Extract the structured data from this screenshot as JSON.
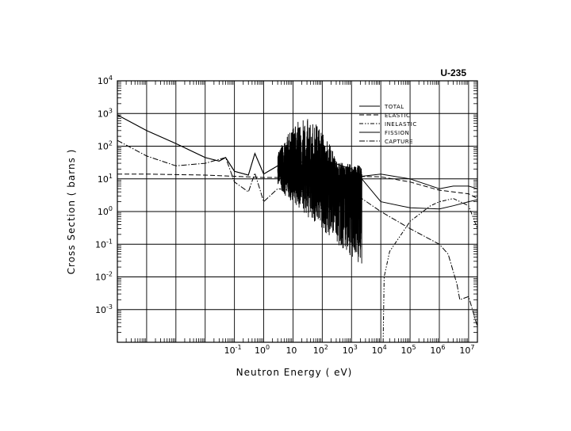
{
  "chart_data": {
    "type": "line",
    "title": "U-235",
    "xlabel": "Neutron Energy ( eV)",
    "ylabel": "Cross Section ( barns )",
    "x_scale": "log",
    "y_scale": "log",
    "xlim": [
      1e-05,
      20000000
    ],
    "ylim": [
      0.0001,
      10000
    ],
    "grid": true,
    "legend_position": "top-right",
    "x_ticks": [
      {
        "value": 0.1,
        "base": "10",
        "exp": "-1"
      },
      {
        "value": 1,
        "base": "10",
        "exp": "0"
      },
      {
        "value": 10,
        "base": "10",
        "exp": ""
      },
      {
        "value": 100,
        "base": "10",
        "exp": "2"
      },
      {
        "value": 1000,
        "base": "10",
        "exp": "3"
      },
      {
        "value": 10000,
        "base": "10",
        "exp": "4"
      },
      {
        "value": 100000,
        "base": "10",
        "exp": "5"
      },
      {
        "value": 1000000,
        "base": "10",
        "exp": "6"
      },
      {
        "value": 10000000,
        "base": "10",
        "exp": "7"
      }
    ],
    "y_ticks": [
      {
        "value": 0.001,
        "base": "10",
        "exp": "-3"
      },
      {
        "value": 0.01,
        "base": "10",
        "exp": "-2"
      },
      {
        "value": 0.1,
        "base": "10",
        "exp": "-1"
      },
      {
        "value": 1,
        "base": "10",
        "exp": "0"
      },
      {
        "value": 10,
        "base": "10",
        "exp": "1"
      },
      {
        "value": 100,
        "base": "10",
        "exp": "2"
      },
      {
        "value": 1000,
        "base": "10",
        "exp": "3"
      },
      {
        "value": 10000,
        "base": "10",
        "exp": "4"
      }
    ],
    "resonance_region": {
      "x_start": 3,
      "x_end": 2250,
      "y_min": 0.008,
      "y_max": 1500
    },
    "series": [
      {
        "name": "TOTAL",
        "dash": "solid",
        "points": [
          [
            1e-05,
            900
          ],
          [
            0.0001,
            300
          ],
          [
            0.001,
            120
          ],
          [
            0.01,
            45
          ],
          [
            0.03,
            35
          ],
          [
            0.05,
            45
          ],
          [
            0.1,
            17
          ],
          [
            0.3,
            13
          ],
          [
            0.5,
            60
          ],
          [
            1,
            14
          ],
          [
            3,
            25
          ],
          [
            10,
            30
          ],
          [
            100,
            40
          ],
          [
            1000,
            20
          ],
          [
            2250,
            12
          ],
          [
            10000,
            14
          ],
          [
            100000,
            10
          ],
          [
            1000000,
            5
          ],
          [
            3000000,
            6
          ],
          [
            10000000,
            6
          ],
          [
            20000000,
            5
          ]
        ]
      },
      {
        "name": "ELASTIC",
        "dash": "dashed",
        "points": [
          [
            1e-05,
            14
          ],
          [
            0.0001,
            14
          ],
          [
            0.001,
            13.5
          ],
          [
            0.01,
            13
          ],
          [
            0.1,
            12
          ],
          [
            1,
            11
          ],
          [
            10,
            11
          ],
          [
            100,
            11
          ],
          [
            1000,
            12
          ],
          [
            10000,
            11.5
          ],
          [
            100000,
            8
          ],
          [
            1000000,
            4.5
          ],
          [
            3000000,
            4
          ],
          [
            10000000,
            3.5
          ],
          [
            20000000,
            2.5
          ]
        ]
      },
      {
        "name": "INELASTIC",
        "dash": "dash-dot-dot",
        "points": [
          [
            12000,
            0.0001
          ],
          [
            13000,
            0.01
          ],
          [
            20000,
            0.06
          ],
          [
            50000,
            0.2
          ],
          [
            100000,
            0.5
          ],
          [
            500000,
            1.5
          ],
          [
            1000000,
            2
          ],
          [
            3000000,
            2.5
          ],
          [
            10000000,
            1.5
          ],
          [
            20000000,
            0.3
          ]
        ]
      },
      {
        "name": "FISSION",
        "dash": "solid",
        "points": [
          [
            1e-05,
            900
          ],
          [
            0.0001,
            300
          ],
          [
            0.001,
            120
          ],
          [
            0.01,
            45
          ],
          [
            0.03,
            35
          ],
          [
            0.05,
            45
          ],
          [
            0.1,
            17
          ],
          [
            0.3,
            13
          ],
          [
            0.5,
            60
          ],
          [
            1,
            14
          ],
          [
            3,
            25
          ],
          [
            2250,
            10
          ],
          [
            10000,
            2
          ],
          [
            100000,
            1.3
          ],
          [
            1000000,
            1.2
          ],
          [
            3000000,
            1.5
          ],
          [
            10000000,
            2
          ],
          [
            20000000,
            2.3
          ]
        ]
      },
      {
        "name": "CAPTURE",
        "dash": "dash-dot",
        "points": [
          [
            1e-05,
            150
          ],
          [
            0.0001,
            50
          ],
          [
            0.001,
            25
          ],
          [
            0.01,
            30
          ],
          [
            0.05,
            45
          ],
          [
            0.1,
            8
          ],
          [
            0.3,
            4
          ],
          [
            0.5,
            15
          ],
          [
            1,
            2
          ],
          [
            3,
            5
          ],
          [
            2250,
            2.5
          ],
          [
            10000,
            1
          ],
          [
            100000,
            0.3
          ],
          [
            1000000,
            0.1
          ],
          [
            2000000,
            0.05
          ],
          [
            4000000,
            0.006
          ],
          [
            5000000,
            0.002
          ],
          [
            10000000,
            0.0025
          ],
          [
            20000000,
            0.0003
          ]
        ]
      }
    ]
  }
}
